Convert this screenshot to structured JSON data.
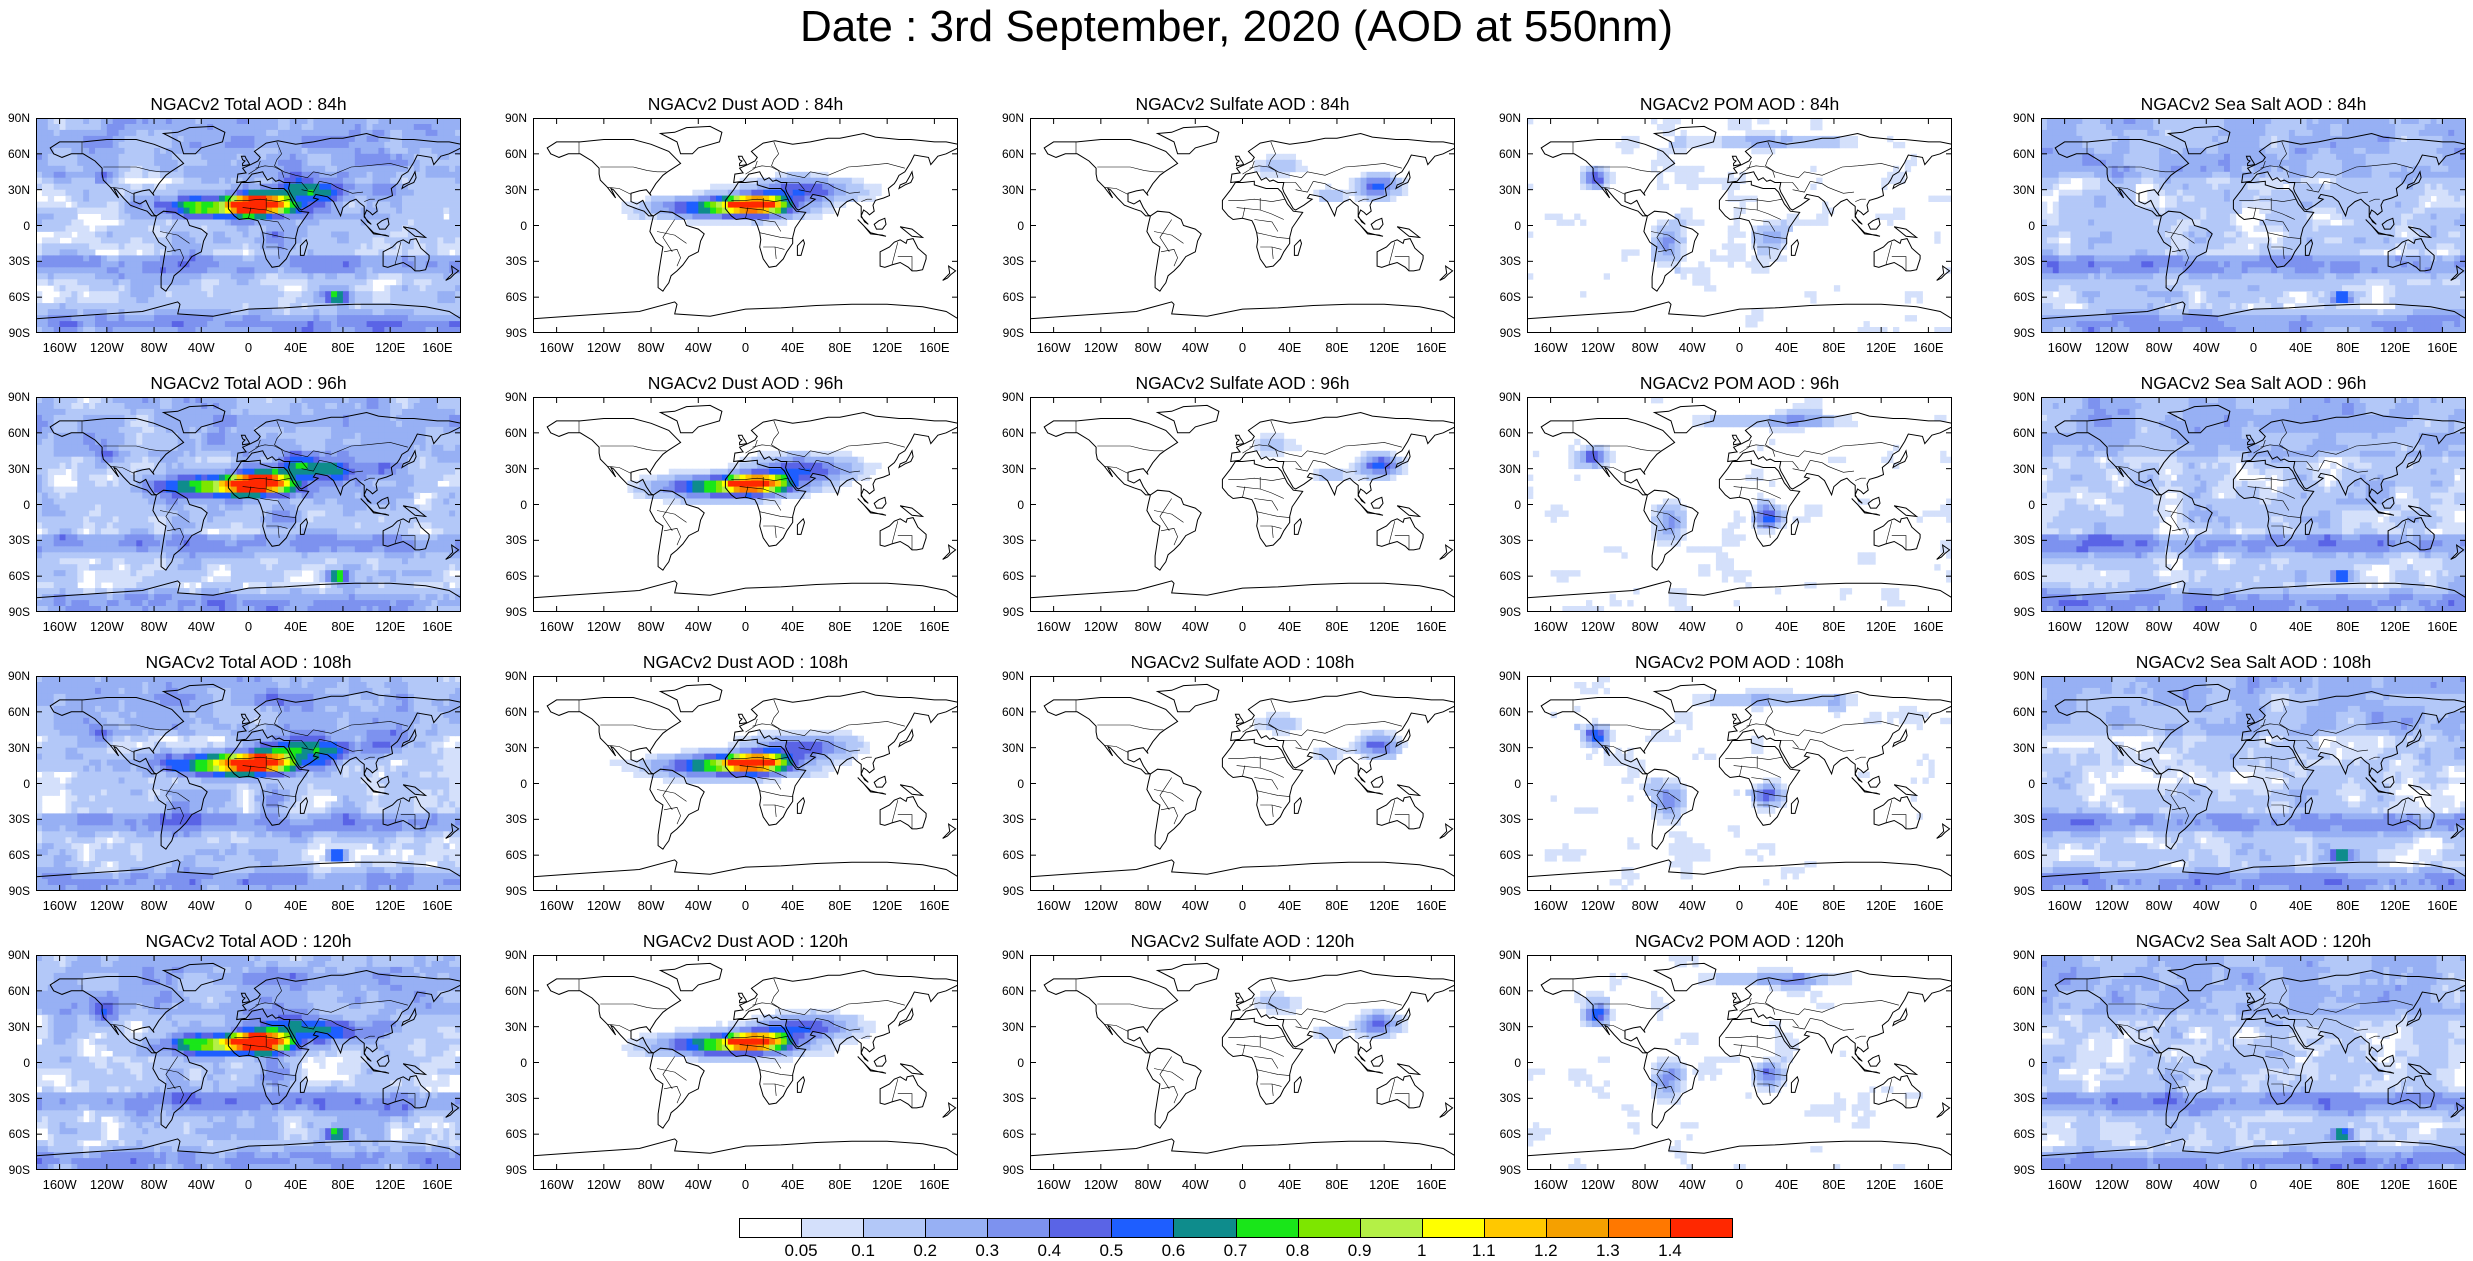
{
  "title": "Date : 3rd September, 2020 (AOD at 550nm)",
  "lat_ticks": [
    "90N",
    "60N",
    "30N",
    "0",
    "30S",
    "60S",
    "90S"
  ],
  "lon_ticks": [
    "160W",
    "120W",
    "80W",
    "40W",
    "0",
    "40E",
    "80E",
    "120E",
    "160E"
  ],
  "panels": [
    [
      {
        "title": "NGACv2 Total AOD : 84h",
        "type": "total"
      },
      {
        "title": "NGACv2 Dust AOD : 84h",
        "type": "dust"
      },
      {
        "title": "NGACv2 Sulfate AOD : 84h",
        "type": "sulfate"
      },
      {
        "title": "NGACv2 POM AOD : 84h",
        "type": "pom"
      },
      {
        "title": "NGACv2 Sea Salt AOD : 84h",
        "type": "seasalt"
      }
    ],
    [
      {
        "title": "NGACv2 Total AOD : 96h",
        "type": "total"
      },
      {
        "title": "NGACv2 Dust AOD : 96h",
        "type": "dust"
      },
      {
        "title": "NGACv2 Sulfate AOD : 96h",
        "type": "sulfate"
      },
      {
        "title": "NGACv2 POM AOD : 96h",
        "type": "pom"
      },
      {
        "title": "NGACv2 Sea Salt AOD : 96h",
        "type": "seasalt"
      }
    ],
    [
      {
        "title": "NGACv2 Total AOD : 108h",
        "type": "total"
      },
      {
        "title": "NGACv2 Dust AOD : 108h",
        "type": "dust"
      },
      {
        "title": "NGACv2 Sulfate AOD : 108h",
        "type": "sulfate"
      },
      {
        "title": "NGACv2 POM AOD : 108h",
        "type": "pom"
      },
      {
        "title": "NGACv2 Sea Salt AOD : 108h",
        "type": "seasalt"
      }
    ],
    [
      {
        "title": "NGACv2 Total AOD : 120h",
        "type": "total"
      },
      {
        "title": "NGACv2 Dust AOD : 120h",
        "type": "dust"
      },
      {
        "title": "NGACv2 Sulfate AOD : 120h",
        "type": "sulfate"
      },
      {
        "title": "NGACv2 POM AOD : 120h",
        "type": "pom"
      },
      {
        "title": "NGACv2 Sea Salt  AOD : 120h",
        "type": "seasalt"
      }
    ]
  ],
  "colorbar": {
    "labels": [
      "0.05",
      "0.1",
      "0.2",
      "0.3",
      "0.4",
      "0.5",
      "0.6",
      "0.7",
      "0.8",
      "0.9",
      "1",
      "1.1",
      "1.2",
      "1.3",
      "1.4"
    ],
    "colors": [
      "#ffffff",
      "#d4e0fb",
      "#b3c8f8",
      "#97b0f4",
      "#7d92ef",
      "#5a64e6",
      "#1e5eff",
      "#0e8c8c",
      "#19e619",
      "#7de600",
      "#b4f046",
      "#ffff00",
      "#ffc800",
      "#f5a000",
      "#ff7800",
      "#ff2800"
    ]
  }
}
